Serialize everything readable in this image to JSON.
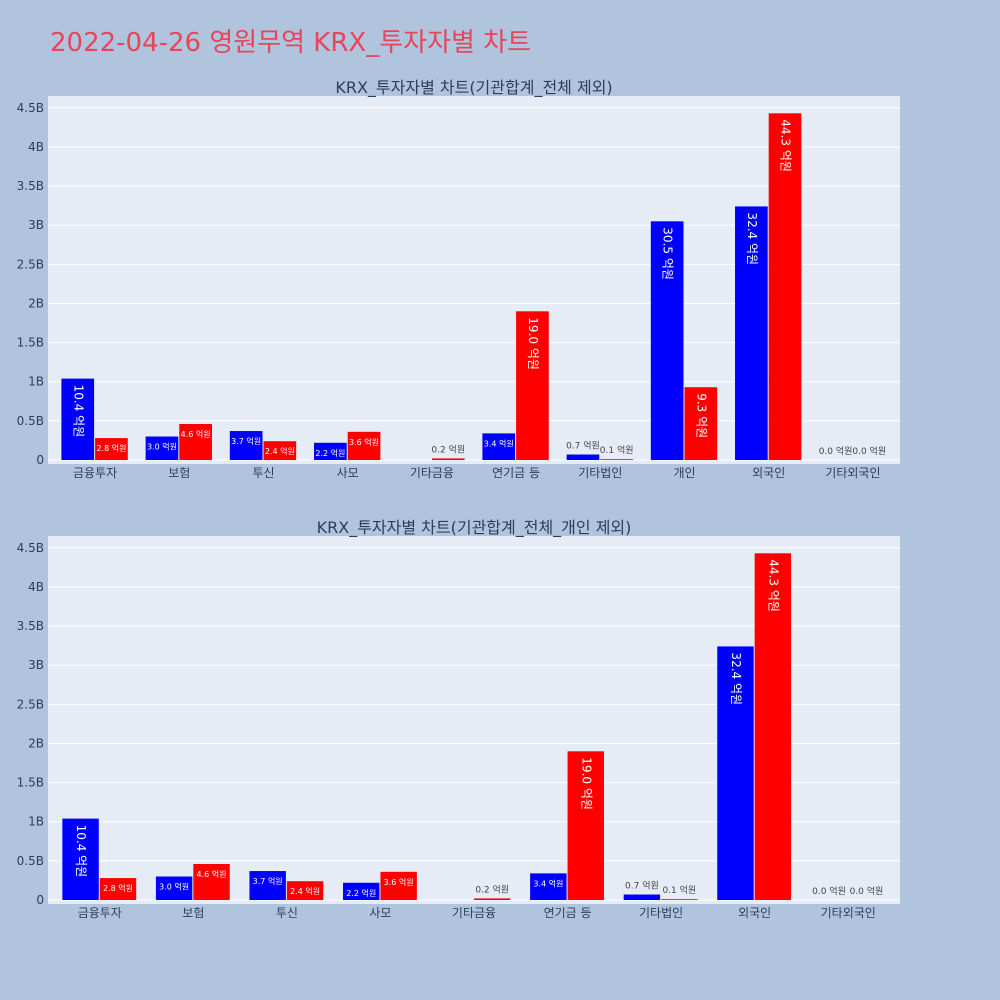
{
  "page": {
    "title": "2022-04-26 영원무역 KRX_투자자별 차트"
  },
  "colors": {
    "background": "#b0c4de",
    "plot_background": "#e5ecf6",
    "title": "#e8455a",
    "series_a": "#0000ff",
    "series_b": "#ff0000"
  },
  "chart_data": [
    {
      "type": "bar",
      "title": "KRX_투자자별 차트(기관합계_전체 제외)",
      "categories": [
        "금융투자",
        "보험",
        "투신",
        "사모",
        "기타금융",
        "연기금 등",
        "기타법인",
        "개인",
        "외국인",
        "기타외국인"
      ],
      "series": [
        {
          "color": "#0000ff",
          "values": [
            1040000000.0,
            300000000.0,
            370000000.0,
            220000000.0,
            0.0,
            340000000.0,
            70000000.0,
            3050000000.0,
            3240000000.0,
            0.0
          ],
          "labels": [
            "10.4 억원",
            "3.0 억원",
            "3.7 억원",
            "2.2 억원",
            "",
            "3.4 억원",
            "0.7 억원",
            "30.5 억원",
            "32.4 억원",
            "0.0 억원"
          ]
        },
        {
          "color": "#ff0000",
          "values": [
            280000000.0,
            460000000.0,
            240000000.0,
            360000000.0,
            20000000.0,
            1900000000.0,
            10000000.0,
            930000000.0,
            4430000000.0,
            0.0
          ],
          "labels": [
            "2.8 억원",
            "4.6 억원",
            "2.4 억원",
            "3.6 억원",
            "0.2 억원",
            "19.0 억원",
            "0.1 억원",
            "9.3 억원",
            "44.3 억원",
            "0.0 억원"
          ]
        }
      ],
      "ylim": [
        0,
        4600000000.0
      ],
      "yticks": [
        0,
        500000000.0,
        1000000000.0,
        1500000000.0,
        2000000000.0,
        2500000000.0,
        3000000000.0,
        3500000000.0,
        4000000000.0,
        4500000000.0
      ],
      "ytick_labels": [
        "0",
        "0.5B",
        "1B",
        "1.5B",
        "2B",
        "2.5B",
        "3B",
        "3.5B",
        "4B",
        "4.5B"
      ],
      "grid": true
    },
    {
      "type": "bar",
      "title": "KRX_투자자별 차트(기관합계_전체_개인 제외)",
      "categories": [
        "금융투자",
        "보험",
        "투신",
        "사모",
        "기타금융",
        "연기금 등",
        "기타법인",
        "외국인",
        "기타외국인"
      ],
      "series": [
        {
          "color": "#0000ff",
          "values": [
            1040000000.0,
            300000000.0,
            370000000.0,
            220000000.0,
            0.0,
            340000000.0,
            70000000.0,
            3240000000.0,
            0.0
          ],
          "labels": [
            "10.4 억원",
            "3.0 억원",
            "3.7 억원",
            "2.2 억원",
            "",
            "3.4 억원",
            "0.7 억원",
            "32.4 억원",
            "0.0 억원"
          ]
        },
        {
          "color": "#ff0000",
          "values": [
            280000000.0,
            460000000.0,
            240000000.0,
            360000000.0,
            20000000.0,
            1900000000.0,
            10000000.0,
            4430000000.0,
            0.0
          ],
          "labels": [
            "2.8 억원",
            "4.6 억원",
            "2.4 억원",
            "3.6 억원",
            "0.2 억원",
            "19.0 억원",
            "0.1 억원",
            "44.3 억원",
            "0.0 억원"
          ]
        }
      ],
      "ylim": [
        0,
        4600000000.0
      ],
      "yticks": [
        0,
        500000000.0,
        1000000000.0,
        1500000000.0,
        2000000000.0,
        2500000000.0,
        3000000000.0,
        3500000000.0,
        4000000000.0,
        4500000000.0
      ],
      "ytick_labels": [
        "0",
        "0.5B",
        "1B",
        "1.5B",
        "2B",
        "2.5B",
        "3B",
        "3.5B",
        "4B",
        "4.5B"
      ],
      "grid": true
    }
  ]
}
